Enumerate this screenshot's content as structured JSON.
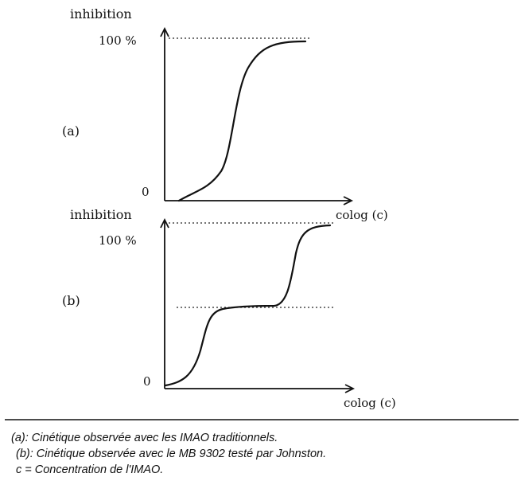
{
  "figure": {
    "panel_a": {
      "y_label": "inhibition",
      "y_max_label": "100 %",
      "y_zero_label": "0",
      "x_label": "colog (c)",
      "panel_label": "(a)"
    },
    "panel_b": {
      "y_label": "inhibition",
      "y_max_label": "100 %",
      "y_zero_label": "0",
      "x_label": "colog (c)",
      "panel_label": "(b)"
    }
  },
  "caption": {
    "line1": "(a): Cinétique observée avec les IMAO traditionnels.",
    "line2": "(b): Cinétique observée avec le MB 9302 testé par Johnston.",
    "line3": "c = Concentration de l'IMAO."
  },
  "chart_data": [
    {
      "type": "line",
      "panel": "(a)",
      "ylabel": "inhibition",
      "xlabel": "colog (c)",
      "y_ticks": [
        "0",
        "100 %"
      ],
      "series": [
        {
          "x": [
            0,
            0.1,
            0.2,
            0.3,
            0.4,
            0.5,
            0.6,
            0.7,
            0.8,
            0.9,
            1.0
          ],
          "y": [
            0,
            2,
            7,
            14,
            28,
            55,
            80,
            93,
            98,
            100,
            100
          ]
        }
      ]
    },
    {
      "type": "line",
      "panel": "(b)",
      "ylabel": "inhibition",
      "xlabel": "colog (c)",
      "y_ticks": [
        "0",
        "100 %"
      ],
      "series": [
        {
          "x": [
            0,
            0.1,
            0.2,
            0.3,
            0.4,
            0.5,
            0.6,
            0.7,
            0.8,
            0.9,
            1.0
          ],
          "y": [
            0,
            3,
            22,
            46,
            50,
            50,
            50,
            52,
            80,
            98,
            100
          ]
        }
      ]
    }
  ]
}
